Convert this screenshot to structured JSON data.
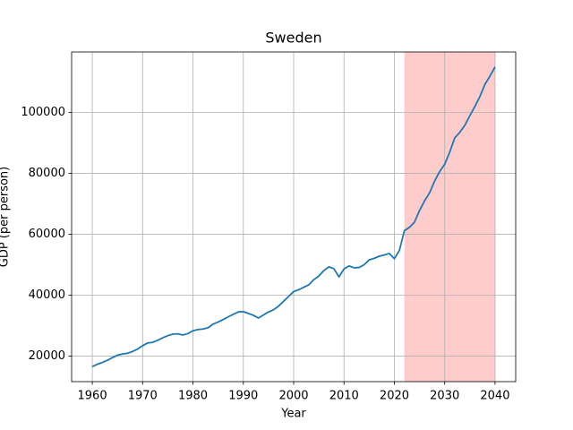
{
  "chart_data": {
    "type": "line",
    "title": "Sweden",
    "x_label": "Year",
    "y_label": "GDP (per person)",
    "x": [
      1960,
      1961,
      1962,
      1963,
      1964,
      1965,
      1966,
      1967,
      1968,
      1969,
      1970,
      1971,
      1972,
      1973,
      1974,
      1975,
      1976,
      1977,
      1978,
      1979,
      1980,
      1981,
      1982,
      1983,
      1984,
      1985,
      1986,
      1987,
      1988,
      1989,
      1990,
      1991,
      1992,
      1993,
      1994,
      1995,
      1996,
      1997,
      1998,
      1999,
      2000,
      2001,
      2002,
      2003,
      2004,
      2005,
      2006,
      2007,
      2008,
      2009,
      2010,
      2011,
      2012,
      2013,
      2014,
      2015,
      2016,
      2017,
      2018,
      2019,
      2020,
      2021,
      2022,
      2023,
      2024,
      2025,
      2026,
      2027,
      2028,
      2029,
      2030,
      2031,
      2032,
      2033,
      2034,
      2035,
      2036,
      2037,
      2038,
      2039,
      2040
    ],
    "values": [
      16500,
      17300,
      17900,
      18600,
      19500,
      20300,
      20700,
      20900,
      21500,
      22300,
      23400,
      24300,
      24500,
      25200,
      26000,
      26700,
      27200,
      27300,
      26900,
      27400,
      28300,
      28700,
      28900,
      29300,
      30500,
      31200,
      32000,
      32900,
      33700,
      34500,
      34600,
      34000,
      33400,
      32500,
      33500,
      34500,
      35200,
      36400,
      38000,
      39600,
      41200,
      41800,
      42600,
      43400,
      45100,
      46300,
      48100,
      49300,
      48700,
      46000,
      48600,
      49600,
      49000,
      49100,
      50000,
      51600,
      52100,
      52800,
      53200,
      53700,
      52000,
      54700,
      61200,
      62300,
      64000,
      67800,
      71000,
      73600,
      77500,
      80600,
      83000,
      87000,
      91700,
      93500,
      95800,
      99000,
      102000,
      105300,
      109300,
      112000,
      115000
    ],
    "color": "#1f77b4",
    "highlight": [
      2022,
      2040
    ],
    "highlight_color": "#ffcccc",
    "xlim": [
      1955.9,
      2044.1
    ],
    "xticks": [
      1960,
      1970,
      1980,
      1990,
      2000,
      2010,
      2020,
      2030,
      2040
    ],
    "ylim": [
      11600,
      119900
    ],
    "yticks": [
      20000,
      40000,
      60000,
      80000,
      100000
    ],
    "grid": true
  }
}
